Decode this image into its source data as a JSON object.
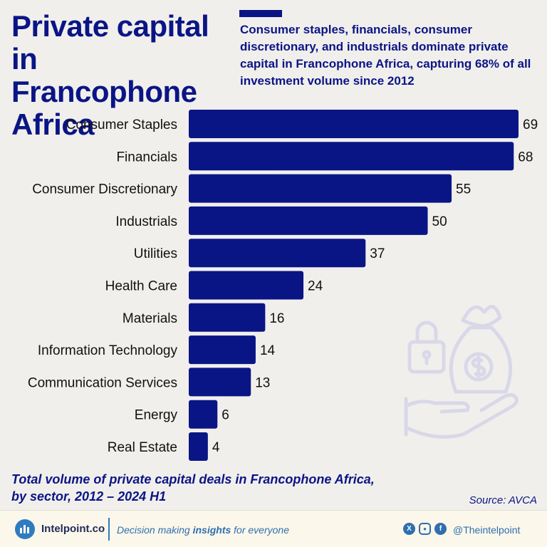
{
  "title": "Private capital in Francophone Africa",
  "subtitle": "Consumer staples, financials, consumer discretionary, and industrials dominate private capital in Francophone Africa, capturing 68% of all investment volume since 2012",
  "caption": "Total volume of private capital deals in Francophone Africa, by sector, 2012 – 2024 H1",
  "source": "Source: AVCA",
  "colors": {
    "bar": "#0a1585",
    "text": "#111111",
    "accent": "#0a1585"
  },
  "chart_data": {
    "type": "bar",
    "orientation": "horizontal",
    "categories": [
      "Consumer Staples",
      "Financials",
      "Consumer Discretionary",
      "Industrials",
      "Utilities",
      "Health Care",
      "Materials",
      "Information Technology",
      "Communication Services",
      "Energy",
      "Real Estate"
    ],
    "values": [
      69,
      68,
      55,
      50,
      37,
      24,
      16,
      14,
      13,
      6,
      4
    ],
    "title": "Private capital in Francophone Africa",
    "xlabel": "",
    "ylabel": "",
    "xlim": [
      0,
      69
    ]
  },
  "footer": {
    "brand": "Intelpoint.co",
    "tagline_pre": "Decision making ",
    "tagline_bold": "insights",
    "tagline_post": " for everyone",
    "handle": "@Theintelpoint",
    "social_icons": [
      "x-icon",
      "instagram-icon",
      "facebook-icon"
    ]
  }
}
